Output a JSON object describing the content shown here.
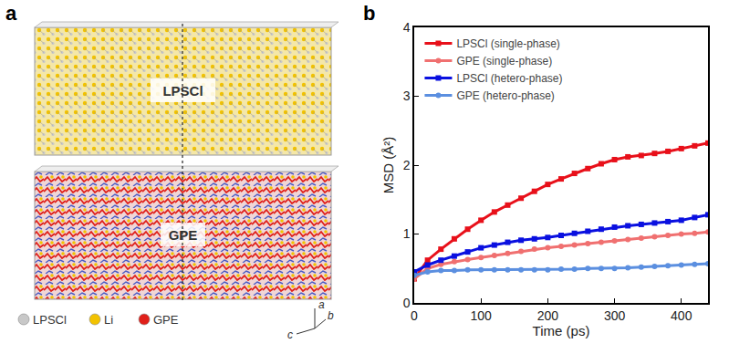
{
  "panel_letters": [
    "a",
    "b"
  ],
  "panel_a": {
    "boxes": [
      {
        "label": "LPSCl"
      },
      {
        "label": "GPE"
      }
    ],
    "legend": [
      {
        "label": "LPSCl",
        "color": "#c8c8c8"
      },
      {
        "label": "Li",
        "color": "#f2c200"
      },
      {
        "label": "GPE",
        "color": "#e0201a"
      }
    ],
    "axes": [
      "a",
      "b",
      "c"
    ]
  },
  "chart_data": {
    "type": "line",
    "x_label": "Time (ps)",
    "y_label": "MSD (Å²)",
    "x": [
      0,
      20,
      40,
      60,
      80,
      100,
      120,
      140,
      160,
      180,
      200,
      220,
      240,
      260,
      280,
      300,
      320,
      340,
      360,
      380,
      400,
      420,
      440
    ],
    "series": [
      {
        "name": "LPSCl (single-phase)",
        "color": "#e8101a",
        "marker": "square",
        "line_style": "solid",
        "values": [
          0.35,
          0.62,
          0.78,
          0.93,
          1.07,
          1.2,
          1.32,
          1.42,
          1.52,
          1.62,
          1.72,
          1.8,
          1.88,
          1.95,
          2.02,
          2.08,
          2.12,
          2.14,
          2.17,
          2.2,
          2.24,
          2.28,
          2.32
        ]
      },
      {
        "name": "GPE (single-phase)",
        "color": "#f07070",
        "marker": "circle",
        "line_style": "solid",
        "values": [
          0.35,
          0.5,
          0.56,
          0.6,
          0.63,
          0.66,
          0.69,
          0.72,
          0.75,
          0.78,
          0.8,
          0.82,
          0.84,
          0.86,
          0.88,
          0.9,
          0.92,
          0.94,
          0.96,
          0.98,
          1.0,
          1.01,
          1.03
        ]
      },
      {
        "name": "LPSCl (hetero-phase)",
        "color": "#0a10e0",
        "marker": "square",
        "line_style": "solid",
        "values": [
          0.45,
          0.55,
          0.62,
          0.68,
          0.74,
          0.8,
          0.84,
          0.88,
          0.91,
          0.93,
          0.95,
          0.98,
          1.01,
          1.04,
          1.07,
          1.1,
          1.12,
          1.14,
          1.16,
          1.18,
          1.2,
          1.24,
          1.28
        ]
      },
      {
        "name": "GPE (hetero-phase)",
        "color": "#5b8fe0",
        "marker": "circle",
        "line_style": "solid",
        "values": [
          0.4,
          0.45,
          0.47,
          0.47,
          0.48,
          0.48,
          0.48,
          0.48,
          0.48,
          0.48,
          0.48,
          0.49,
          0.49,
          0.5,
          0.5,
          0.5,
          0.51,
          0.52,
          0.53,
          0.54,
          0.55,
          0.56,
          0.57
        ]
      }
    ],
    "xlim": [
      0,
      440
    ],
    "xticks": [
      0,
      100,
      200,
      300,
      400
    ],
    "ylim": [
      0,
      4
    ],
    "yticks": [
      0,
      1,
      2,
      3,
      4
    ],
    "grid": false,
    "legend": "upper left"
  }
}
